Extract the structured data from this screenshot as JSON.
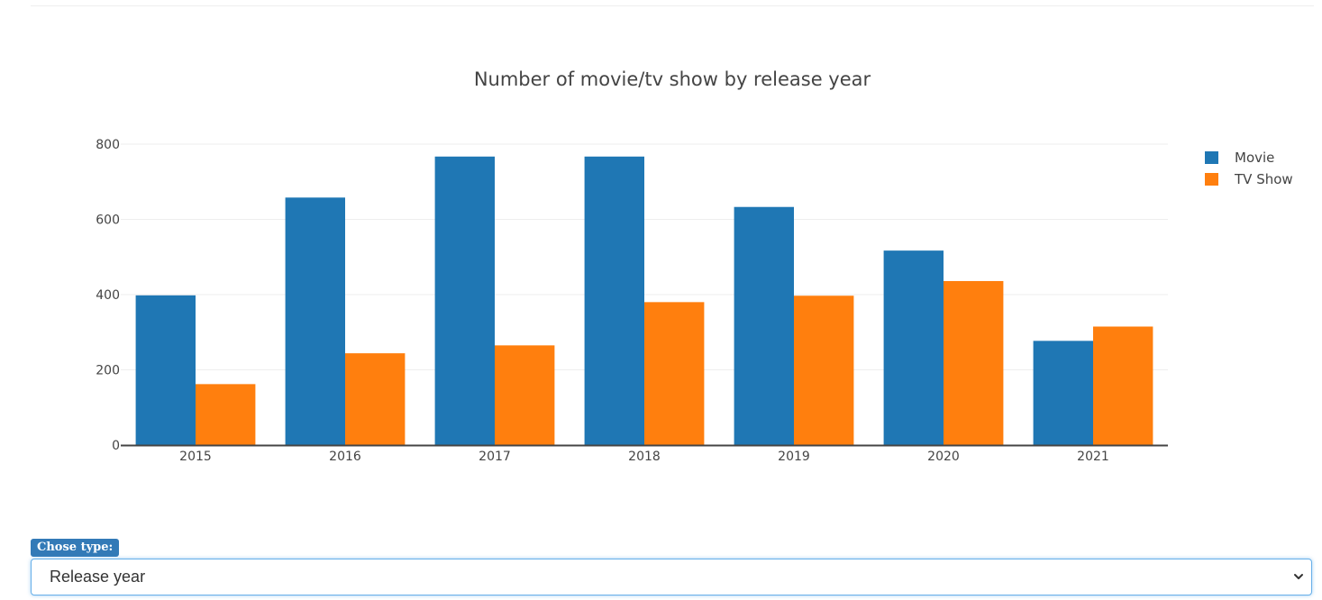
{
  "chart_data": {
    "type": "bar",
    "title": "Number of movie/tv show by release year",
    "categories": [
      "2015",
      "2016",
      "2017",
      "2018",
      "2019",
      "2020",
      "2021"
    ],
    "series": [
      {
        "name": "Movie",
        "values": [
          398,
          658,
          767,
          767,
          633,
          517,
          277
        ],
        "color": "#1f77b4"
      },
      {
        "name": "TV Show",
        "values": [
          162,
          244,
          265,
          380,
          397,
          436,
          315
        ],
        "color": "#ff7f0e"
      }
    ],
    "yticks": [
      "0",
      "200",
      "400",
      "600",
      "800"
    ],
    "ylim": [
      0,
      800
    ],
    "grid": true,
    "legend_position": "top-right"
  },
  "controls": {
    "type_label": "Chose type:",
    "type_selected": "Release year"
  },
  "colors": {
    "label_bg": "#337ab7",
    "select_border": "#66afe9"
  },
  "icons": {
    "select_arrow": "chevron-down-icon"
  }
}
